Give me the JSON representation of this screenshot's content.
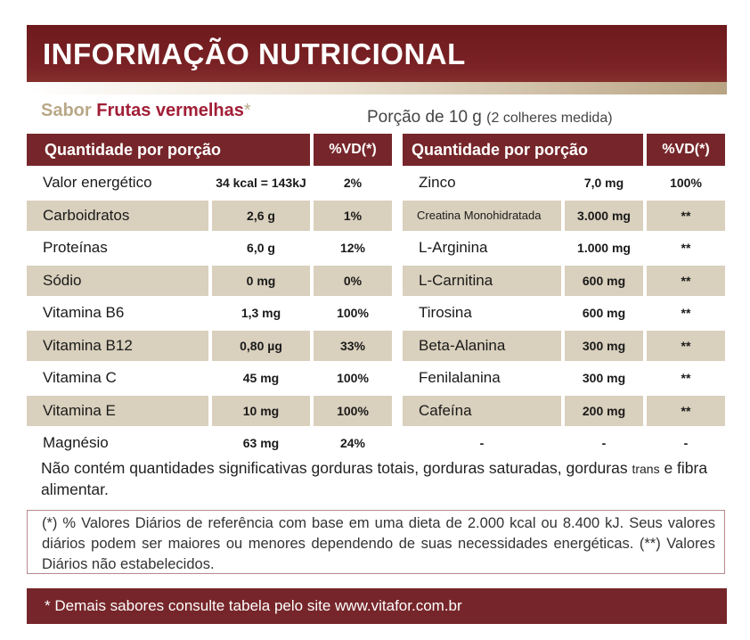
{
  "title": "INFORMAÇÃO NUTRICIONAL",
  "flavor": {
    "prefix": "Sabor",
    "name": "Frutas vermelhas",
    "asterisk": "*"
  },
  "portion": {
    "main": "Porção de 10 g",
    "detail": "(2 colheres medida)"
  },
  "headers": {
    "qty": "Quantidade por porção",
    "vd": "%VD(*)"
  },
  "left_rows": [
    {
      "name": "Valor energético",
      "amount": "34 kcal = 143kJ",
      "vd": "2%"
    },
    {
      "name": "Carboidratos",
      "amount": "2,6 g",
      "vd": "1%"
    },
    {
      "name": "Proteínas",
      "amount": "6,0 g",
      "vd": "12%"
    },
    {
      "name": "Sódio",
      "amount": "0 mg",
      "vd": "0%"
    },
    {
      "name": "Vitamina B6",
      "amount": "1,3 mg",
      "vd": "100%"
    },
    {
      "name": "Vitamina B12",
      "amount": "0,80 µg",
      "vd": "33%"
    },
    {
      "name": "Vitamina C",
      "amount": "45 mg",
      "vd": "100%"
    },
    {
      "name": "Vitamina E",
      "amount": "10 mg",
      "vd": "100%"
    },
    {
      "name": "Magnésio",
      "amount": "63 mg",
      "vd": "24%"
    }
  ],
  "right_rows": [
    {
      "name": "Zinco",
      "amount": "7,0 mg",
      "vd": "100%"
    },
    {
      "name": "Creatina Monohidratada",
      "amount": "3.000 mg",
      "vd": "**"
    },
    {
      "name": "L-Arginina",
      "amount": "1.000 mg",
      "vd": "**"
    },
    {
      "name": "L-Carnitina",
      "amount": "600 mg",
      "vd": "**"
    },
    {
      "name": "Tirosina",
      "amount": "600 mg",
      "vd": "**"
    },
    {
      "name": "Beta-Alanina",
      "amount": "300 mg",
      "vd": "**"
    },
    {
      "name": "Fenilalanina",
      "amount": "300 mg",
      "vd": "**"
    },
    {
      "name": "Cafeína",
      "amount": "200 mg",
      "vd": "**"
    },
    {
      "name": "-",
      "amount": "-",
      "vd": "-"
    }
  ],
  "note": {
    "part1": "Não contém quantidades significativas gorduras totais, gorduras saturadas, gorduras",
    "trans": "trans",
    "part2": "e fibra alimentar."
  },
  "reference": "(*) % Valores Diários de referência com base em uma dieta de 2.000 kcal ou 8.400 kJ. Seus valores diários podem ser maiores ou menores dependendo de suas necessidades energéticas. (**) Valores Diários não estabelecidos.",
  "footer": "* Demais sabores consulte tabela pelo site www.vitafor.com.br",
  "colors": {
    "brand_dark": "#76262a",
    "shade": "#d9d0bd",
    "flavor": "#a11e36",
    "muted": "#b9a888"
  }
}
